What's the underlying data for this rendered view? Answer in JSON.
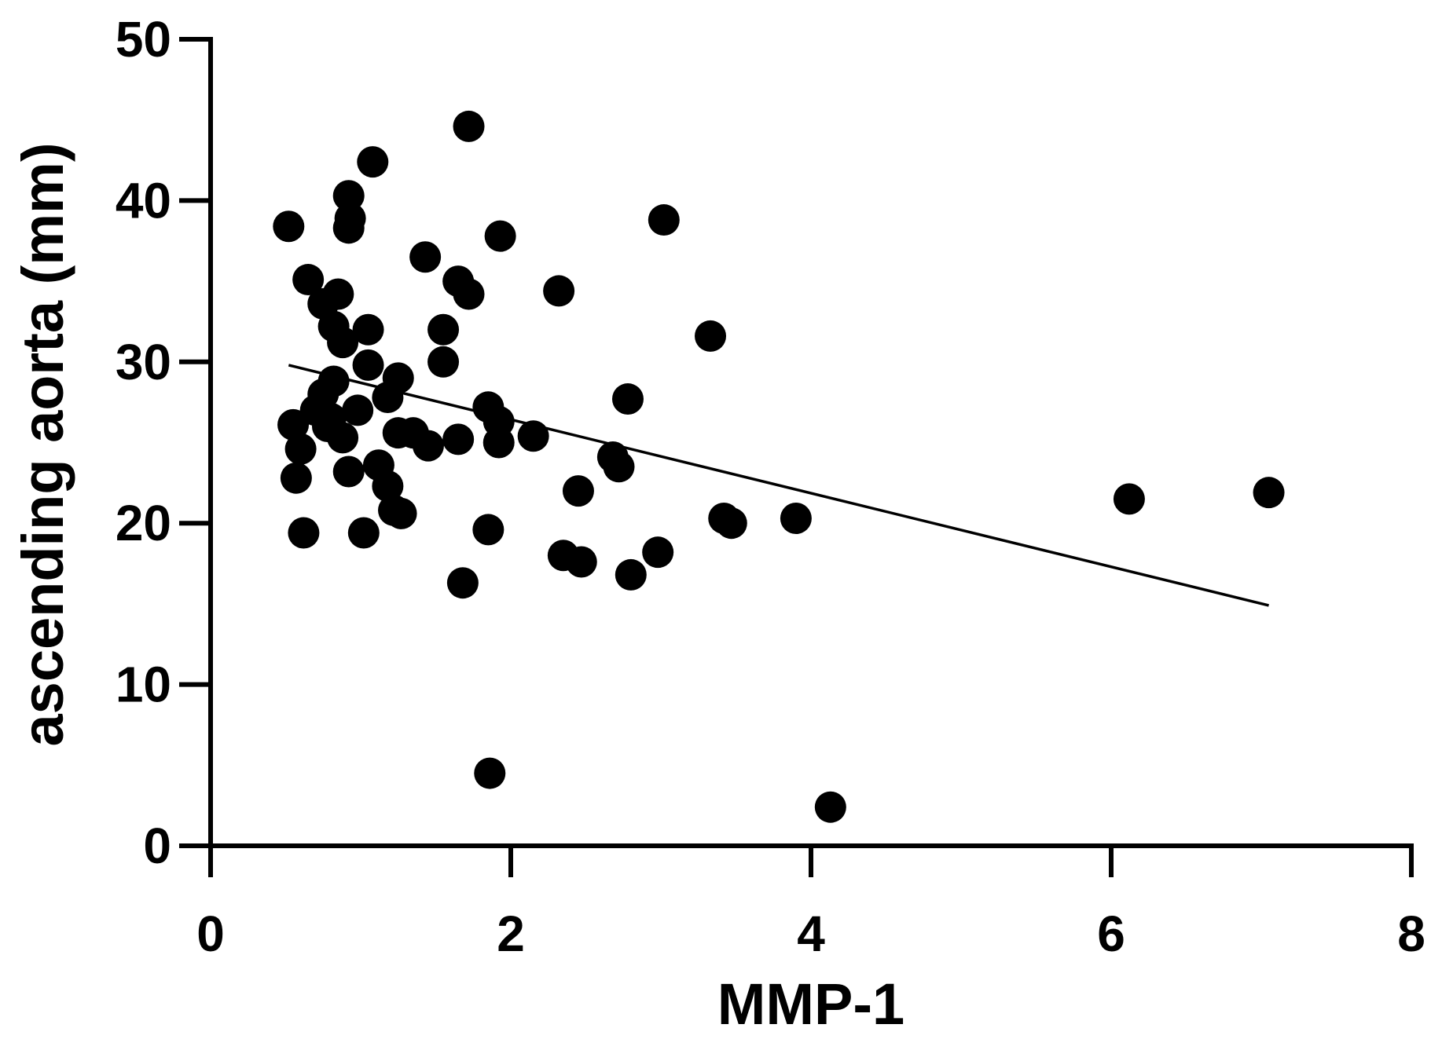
{
  "chart_data": {
    "type": "scatter",
    "xlabel": "MMP-1",
    "ylabel": "ascending aorta (mm)",
    "xlim": [
      0,
      8
    ],
    "ylim": [
      0,
      50
    ],
    "x_ticks": [
      "0",
      "2",
      "4",
      "6",
      "8"
    ],
    "y_ticks": [
      "0",
      "10",
      "20",
      "30",
      "40",
      "50"
    ],
    "grid": false,
    "marker_color": "#000000",
    "points": [
      {
        "x": 0.52,
        "y": 38.4
      },
      {
        "x": 0.65,
        "y": 35.1
      },
      {
        "x": 0.85,
        "y": 34.2
      },
      {
        "x": 0.75,
        "y": 33.6
      },
      {
        "x": 0.82,
        "y": 32.2
      },
      {
        "x": 0.88,
        "y": 31.2
      },
      {
        "x": 1.05,
        "y": 32.0
      },
      {
        "x": 0.92,
        "y": 40.3
      },
      {
        "x": 0.93,
        "y": 38.9
      },
      {
        "x": 0.92,
        "y": 38.3
      },
      {
        "x": 1.08,
        "y": 42.4
      },
      {
        "x": 1.72,
        "y": 44.6
      },
      {
        "x": 1.43,
        "y": 36.5
      },
      {
        "x": 1.65,
        "y": 35.0
      },
      {
        "x": 1.72,
        "y": 34.2
      },
      {
        "x": 1.55,
        "y": 32.0
      },
      {
        "x": 1.55,
        "y": 30.0
      },
      {
        "x": 1.93,
        "y": 37.8
      },
      {
        "x": 2.32,
        "y": 34.4
      },
      {
        "x": 3.02,
        "y": 38.8
      },
      {
        "x": 3.33,
        "y": 31.6
      },
      {
        "x": 1.05,
        "y": 29.8
      },
      {
        "x": 1.25,
        "y": 29.0
      },
      {
        "x": 0.82,
        "y": 28.8
      },
      {
        "x": 0.75,
        "y": 28.0
      },
      {
        "x": 1.18,
        "y": 27.8
      },
      {
        "x": 0.7,
        "y": 27.0
      },
      {
        "x": 0.98,
        "y": 27.0
      },
      {
        "x": 0.8,
        "y": 26.5
      },
      {
        "x": 0.78,
        "y": 26.0
      },
      {
        "x": 0.55,
        "y": 26.1
      },
      {
        "x": 0.88,
        "y": 25.3
      },
      {
        "x": 0.6,
        "y": 24.6
      },
      {
        "x": 1.25,
        "y": 25.6
      },
      {
        "x": 1.35,
        "y": 25.6
      },
      {
        "x": 1.45,
        "y": 24.8
      },
      {
        "x": 1.65,
        "y": 25.2
      },
      {
        "x": 1.85,
        "y": 27.2
      },
      {
        "x": 1.92,
        "y": 26.3
      },
      {
        "x": 1.92,
        "y": 25.0
      },
      {
        "x": 2.15,
        "y": 25.4
      },
      {
        "x": 2.68,
        "y": 24.1
      },
      {
        "x": 2.72,
        "y": 23.5
      },
      {
        "x": 2.78,
        "y": 27.7
      },
      {
        "x": 0.92,
        "y": 23.2
      },
      {
        "x": 1.12,
        "y": 23.6
      },
      {
        "x": 1.18,
        "y": 22.3
      },
      {
        "x": 0.57,
        "y": 22.8
      },
      {
        "x": 1.22,
        "y": 20.8
      },
      {
        "x": 1.27,
        "y": 20.6
      },
      {
        "x": 2.45,
        "y": 22.0
      },
      {
        "x": 0.62,
        "y": 19.4
      },
      {
        "x": 1.02,
        "y": 19.4
      },
      {
        "x": 1.85,
        "y": 19.6
      },
      {
        "x": 2.35,
        "y": 18.0
      },
      {
        "x": 2.47,
        "y": 17.6
      },
      {
        "x": 2.8,
        "y": 16.8
      },
      {
        "x": 2.98,
        "y": 18.2
      },
      {
        "x": 1.68,
        "y": 16.3
      },
      {
        "x": 3.42,
        "y": 20.3
      },
      {
        "x": 3.47,
        "y": 20.0
      },
      {
        "x": 3.9,
        "y": 20.3
      },
      {
        "x": 6.12,
        "y": 21.5
      },
      {
        "x": 7.05,
        "y": 21.9
      },
      {
        "x": 1.86,
        "y": 4.5
      },
      {
        "x": 4.13,
        "y": 2.4
      }
    ],
    "regression_line": {
      "x": [
        0.52,
        7.05
      ],
      "y": [
        29.8,
        14.9
      ]
    }
  }
}
